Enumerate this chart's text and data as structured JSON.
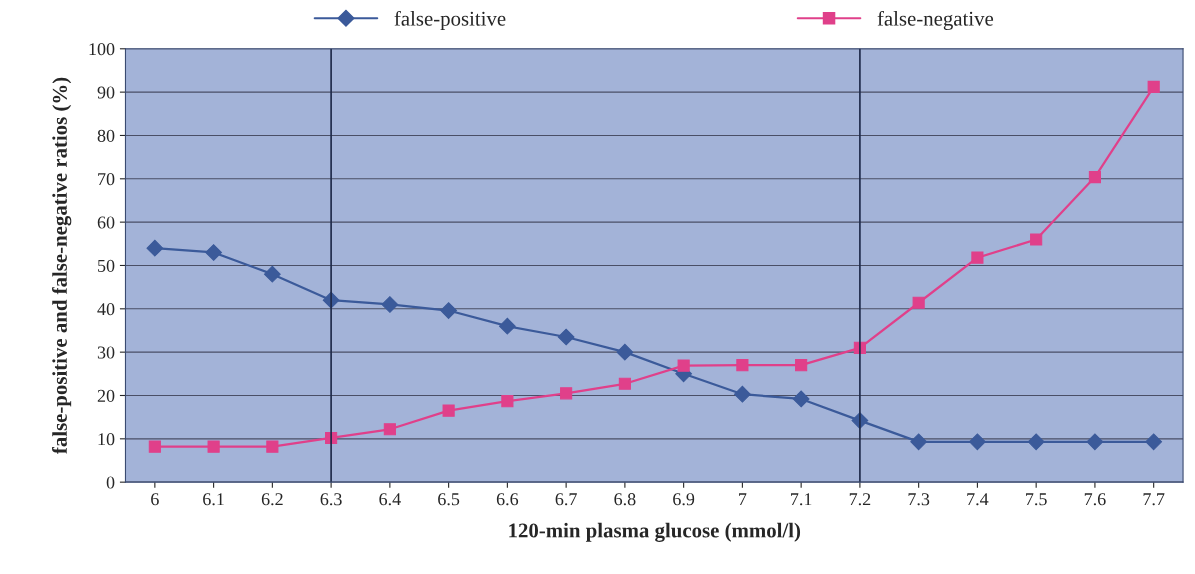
{
  "chart_data": {
    "type": "line",
    "xlabel": "120-min plasma glucose (mmol/l)",
    "ylabel": "false-positive and false-negative ratios (%)",
    "x": [
      6,
      6.1,
      6.2,
      6.3,
      6.4,
      6.5,
      6.6,
      6.7,
      6.8,
      6.9,
      7,
      7.1,
      7.2,
      7.3,
      7.4,
      7.5,
      7.6,
      7.7
    ],
    "xlim": [
      5.95,
      7.75
    ],
    "xticks": [
      6,
      6.1,
      6.2,
      6.3,
      6.4,
      6.5,
      6.6,
      6.7,
      6.8,
      6.9,
      7,
      7.1,
      7.2,
      7.3,
      7.4,
      7.5,
      7.6,
      7.7
    ],
    "ylim": [
      0,
      100
    ],
    "yticks": [
      0,
      10,
      20,
      30,
      40,
      50,
      60,
      70,
      80,
      90,
      100
    ],
    "series": [
      {
        "name": "false-positive",
        "color": "#3b5a9a",
        "marker": "diamond",
        "values": [
          54,
          53,
          48,
          42,
          41,
          39.6,
          36,
          33.5,
          30,
          25,
          20.3,
          19.2,
          14.2,
          9.3,
          9.3,
          9.3,
          9.3,
          9.3
        ]
      },
      {
        "name": "false-negative",
        "color": "#e0408a",
        "marker": "square",
        "values": [
          8.2,
          8.2,
          8.2,
          10.2,
          12.2,
          16.5,
          18.7,
          20.5,
          22.7,
          26.9,
          27,
          27,
          31,
          41.4,
          51.8,
          56,
          70.4,
          91.2
        ]
      }
    ],
    "ref_lines": [
      {
        "axis": "x",
        "value": 6.3,
        "color": "#1f2a4a"
      },
      {
        "axis": "x",
        "value": 7.2,
        "color": "#1f2a4a"
      }
    ],
    "grid": "y",
    "legend": "top"
  }
}
